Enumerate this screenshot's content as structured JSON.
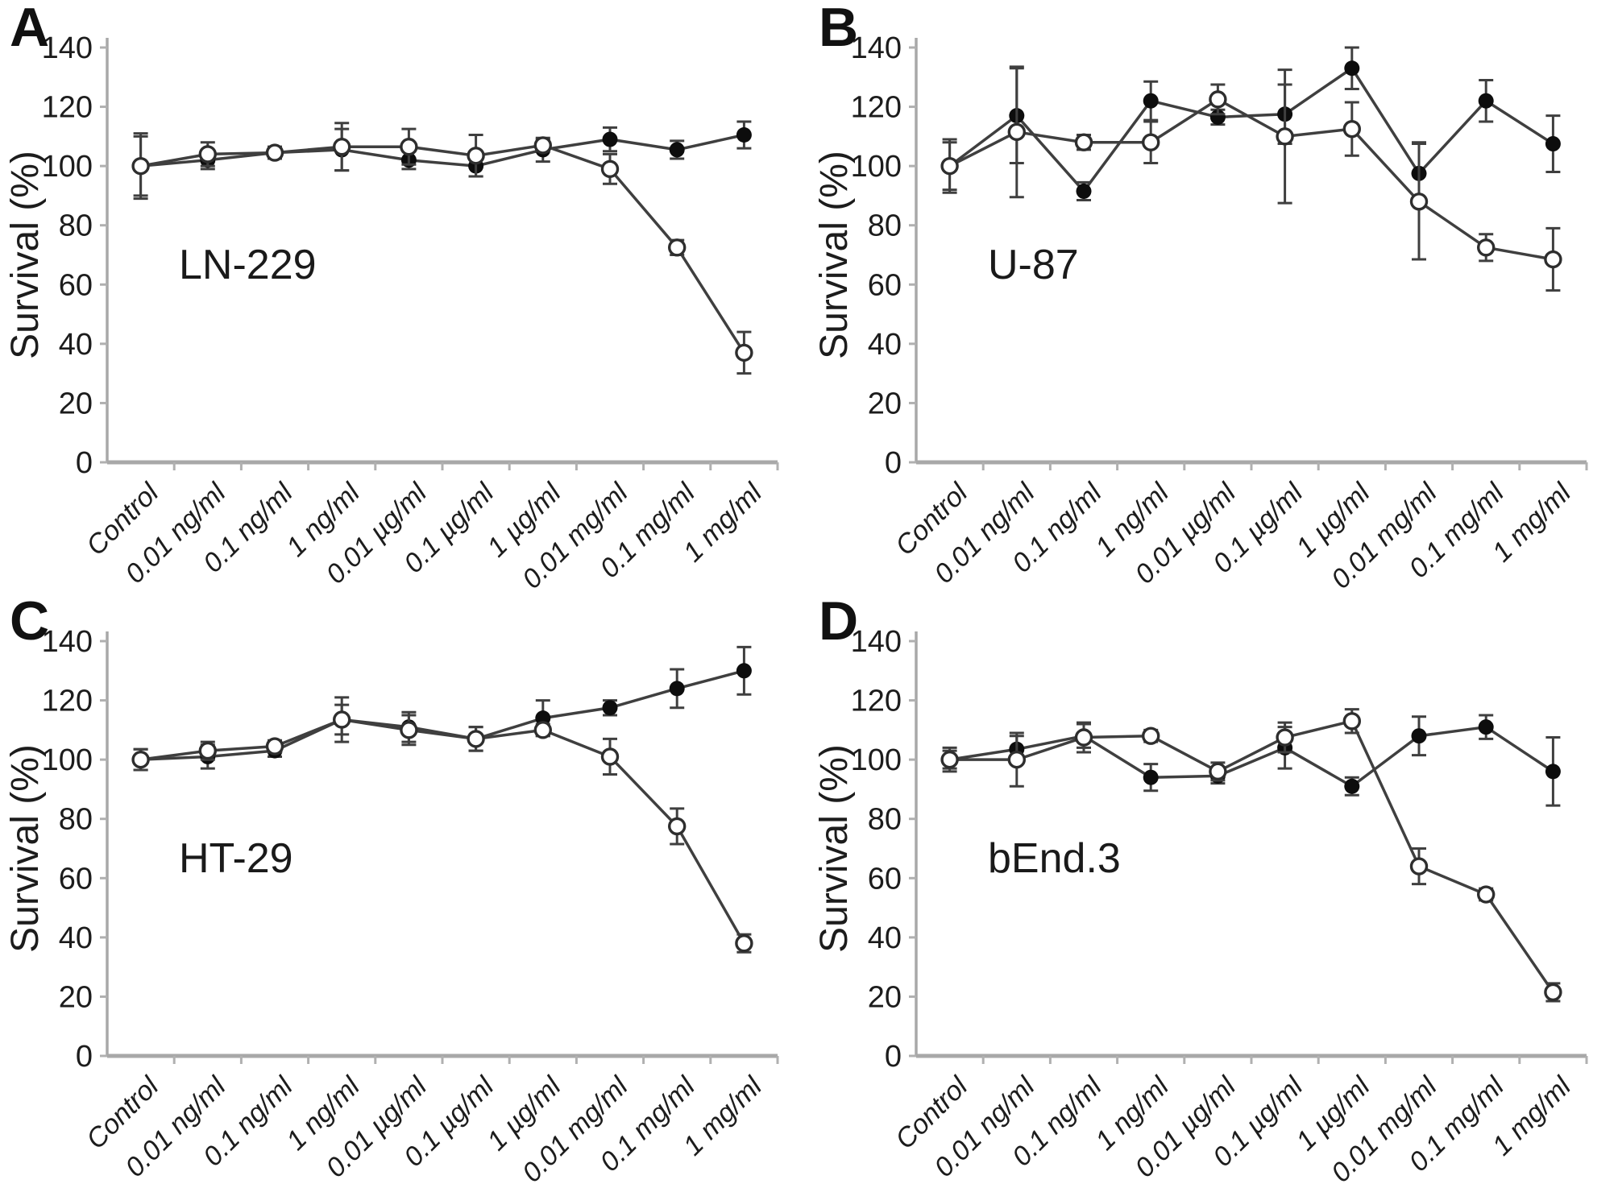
{
  "figure": {
    "ylabel": "Survival (%)",
    "colors": {
      "line": "#3f3f3f",
      "filled_marker": "#0d0d0d",
      "open_marker_fill": "#ffffff",
      "open_marker_stroke": "#2e2e2e",
      "axis": "#a8a8a8",
      "tick": "#b0b0b0",
      "text": "#1c1c1c"
    }
  },
  "chart_data": [
    {
      "type": "line",
      "panel_letter": "A",
      "cell_line": "LN-229",
      "ylabel": "Survival (%)",
      "ylim": [
        0,
        140
      ],
      "yticks": [
        0,
        20,
        40,
        60,
        80,
        100,
        120,
        140
      ],
      "grid": false,
      "legend": "none",
      "categories": [
        "Control",
        "0.01 ng/ml",
        "0.1 ng/ml",
        "1 ng/ml",
        "0.01 µg/ml",
        "0.1 µg/ml",
        "1 µg/ml",
        "0.01 mg/ml",
        "0.1 mg/ml",
        "1 mg/ml"
      ],
      "series": [
        {
          "name": "filled-circle",
          "marker": "filled",
          "values": [
            100,
            102,
            104.5,
            105.5,
            102,
            100,
            105.5,
            109,
            105.5,
            110.5
          ],
          "errors": [
            11,
            3,
            2,
            7,
            3,
            3.5,
            4,
            4,
            3,
            4.5
          ]
        },
        {
          "name": "open-circle",
          "marker": "open",
          "values": [
            100,
            104,
            104.5,
            106.5,
            106.5,
            103.5,
            107,
            99,
            72.5,
            37
          ],
          "errors": [
            10,
            4,
            2,
            8,
            6,
            7,
            2,
            5,
            2.5,
            7
          ]
        }
      ]
    },
    {
      "type": "line",
      "panel_letter": "B",
      "cell_line": "U-87",
      "ylabel": "Survival (%)",
      "ylim": [
        0,
        140
      ],
      "yticks": [
        0,
        20,
        40,
        60,
        80,
        100,
        120,
        140
      ],
      "grid": false,
      "legend": "none",
      "categories": [
        "Control",
        "0.01 ng/ml",
        "0.1 ng/ml",
        "1 ng/ml",
        "0.01 µg/ml",
        "0.1 µg/ml",
        "1 µg/ml",
        "0.01 mg/ml",
        "0.1 mg/ml",
        "1 mg/ml"
      ],
      "series": [
        {
          "name": "filled-circle",
          "marker": "filled",
          "values": [
            100,
            117,
            91.5,
            122,
            116.5,
            117.5,
            133,
            97.5,
            122,
            107.5
          ],
          "errors": [
            9,
            16,
            3,
            6.5,
            2.5,
            10,
            7,
            10.5,
            7,
            9.5
          ]
        },
        {
          "name": "open-circle",
          "marker": "open",
          "values": [
            100,
            111.5,
            108,
            108,
            122.5,
            110,
            112.5,
            88,
            72.5,
            68.5
          ],
          "errors": [
            8,
            22,
            2.5,
            7,
            5,
            22.5,
            9,
            19.5,
            4.5,
            10.5
          ]
        }
      ]
    },
    {
      "type": "line",
      "panel_letter": "C",
      "cell_line": "HT-29",
      "ylabel": "Survival (%)",
      "ylim": [
        0,
        140
      ],
      "yticks": [
        0,
        20,
        40,
        60,
        80,
        100,
        120,
        140
      ],
      "grid": false,
      "legend": "none",
      "categories": [
        "Control",
        "0.01 ng/ml",
        "0.1 ng/ml",
        "1 ng/ml",
        "0.01 µg/ml",
        "0.1 µg/ml",
        "1 µg/ml",
        "0.01 mg/ml",
        "0.1 mg/ml",
        "1 mg/ml"
      ],
      "series": [
        {
          "name": "filled-circle",
          "marker": "filled",
          "values": [
            100,
            101,
            103,
            113.5,
            111,
            107,
            114,
            117.5,
            124,
            130
          ],
          "errors": [
            3.5,
            4,
            2,
            7.5,
            5,
            4,
            6,
            2.5,
            6.5,
            8
          ]
        },
        {
          "name": "open-circle",
          "marker": "open",
          "values": [
            100,
            103,
            104.5,
            113.5,
            110,
            107,
            110,
            101,
            77.5,
            38
          ],
          "errors": [
            3.5,
            3,
            2,
            5,
            5,
            4,
            2,
            6,
            6,
            3
          ]
        }
      ]
    },
    {
      "type": "line",
      "panel_letter": "D",
      "cell_line": "bEnd.3",
      "ylabel": "Survival (%)",
      "ylim": [
        0,
        140
      ],
      "yticks": [
        0,
        20,
        40,
        60,
        80,
        100,
        120,
        140
      ],
      "grid": false,
      "legend": "none",
      "categories": [
        "Control",
        "0.01 ng/ml",
        "0.1 ng/ml",
        "1 ng/ml",
        "0.01 µg/ml",
        "0.1 µg/ml",
        "1 µg/ml",
        "0.01 mg/ml",
        "0.1 mg/ml",
        "1 mg/ml"
      ],
      "series": [
        {
          "name": "filled-circle",
          "marker": "filled",
          "values": [
            100,
            103.5,
            108,
            94,
            94.5,
            104,
            91,
            108,
            111,
            96
          ],
          "errors": [
            4,
            4.5,
            4,
            4.5,
            2.5,
            7,
            3,
            6.5,
            4,
            11.5
          ]
        },
        {
          "name": "open-circle",
          "marker": "open",
          "values": [
            100,
            100,
            107.5,
            108,
            96,
            107.5,
            113,
            64,
            54.5,
            21.5
          ],
          "errors": [
            3,
            9,
            5,
            2,
            3,
            5,
            4,
            6,
            2,
            3
          ]
        }
      ]
    }
  ]
}
